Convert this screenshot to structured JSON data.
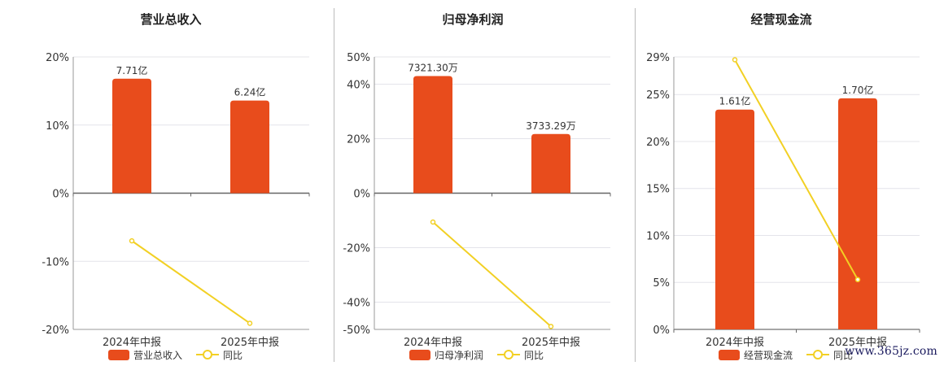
{
  "colors": {
    "bar": "#e84c1c",
    "line": "#f2d024",
    "grid": "#e4e4ea",
    "axis": "#666666",
    "text": "#333333"
  },
  "legend": {
    "yoy_label": "同比"
  },
  "watermark": "www.365jz.com",
  "chart_data": [
    {
      "type": "bar",
      "title": "营业总收入",
      "categories": [
        "2024年中报",
        "2025年中报"
      ],
      "series": [
        {
          "name": "营业总收入",
          "type": "bar",
          "values": [
            16.8,
            13.6
          ],
          "labels": [
            "7.71亿",
            "6.24亿"
          ]
        },
        {
          "name": "同比",
          "type": "line",
          "values": [
            -7.0,
            -19.1
          ]
        }
      ],
      "ylim": [
        -20,
        20
      ],
      "yticks": [
        -20,
        -10,
        0,
        10,
        20
      ],
      "ytick_labels": [
        "-20%",
        "-10%",
        "0%",
        "10%",
        "20%"
      ],
      "grid": true,
      "legend_position": "bottom"
    },
    {
      "type": "bar",
      "title": "归母净利润",
      "categories": [
        "2024年中报",
        "2025年中报"
      ],
      "series": [
        {
          "name": "归母净利润",
          "type": "bar",
          "values": [
            43.0,
            21.7
          ],
          "labels": [
            "7321.30万",
            "3733.29万"
          ]
        },
        {
          "name": "同比",
          "type": "line",
          "values": [
            -10.6,
            -48.9
          ]
        }
      ],
      "ylim": [
        -50,
        50
      ],
      "yticks": [
        -50,
        -40,
        -20,
        0,
        20,
        40,
        50
      ],
      "ytick_labels": [
        "-50%",
        "-40%",
        "-20%",
        "0%",
        "20%",
        "40%",
        "50%"
      ],
      "grid": true,
      "legend_position": "bottom"
    },
    {
      "type": "bar",
      "title": "经营现金流",
      "categories": [
        "2024年中报",
        "2025年中报"
      ],
      "series": [
        {
          "name": "经营现金流",
          "type": "bar",
          "values": [
            23.4,
            24.6
          ],
          "labels": [
            "1.61亿",
            "1.70亿"
          ]
        },
        {
          "name": "同比",
          "type": "line",
          "values": [
            28.7,
            5.3
          ]
        }
      ],
      "ylim": [
        0,
        29
      ],
      "yticks": [
        0,
        5,
        10,
        15,
        20,
        25,
        29
      ],
      "ytick_labels": [
        "0%",
        "5%",
        "10%",
        "15%",
        "20%",
        "25%",
        "29%"
      ],
      "grid": true,
      "legend_position": "bottom"
    }
  ]
}
